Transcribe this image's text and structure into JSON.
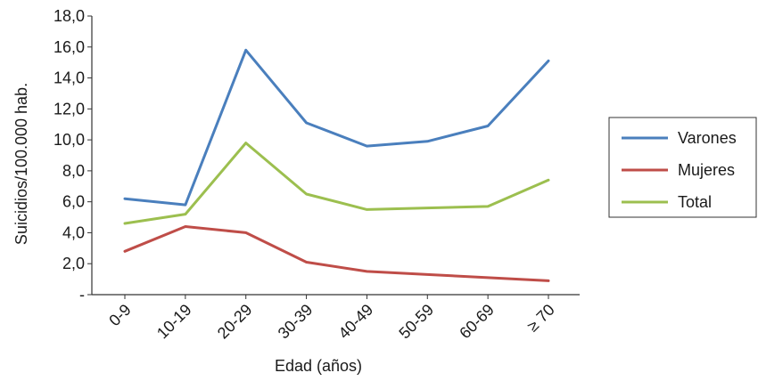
{
  "chart_data": {
    "type": "line",
    "title": "",
    "xlabel": "Edad (años)",
    "ylabel": "Suicidios/100.000 hab.",
    "categories": [
      "0-9",
      "10-19",
      "20-29",
      "30-39",
      "40-49",
      "50-59",
      "60-69",
      "≥ 70"
    ],
    "ylim": [
      0,
      18
    ],
    "yticks": [
      "-",
      "2,0",
      "4,0",
      "6,0",
      "8,0",
      "10,0",
      "12,0",
      "14,0",
      "16,0",
      "18,0"
    ],
    "ytick_values": [
      0,
      2,
      4,
      6,
      8,
      10,
      12,
      14,
      16,
      18
    ],
    "grid": false,
    "legend_position": "right",
    "series": [
      {
        "name": "Varones",
        "color": "#4a7fbd",
        "values": [
          6.2,
          5.8,
          15.8,
          11.1,
          9.6,
          9.9,
          10.9,
          15.1
        ]
      },
      {
        "name": "Mujeres",
        "color": "#bf4d48",
        "values": [
          2.8,
          4.4,
          4.0,
          2.1,
          1.5,
          1.3,
          1.1,
          0.9
        ]
      },
      {
        "name": "Total",
        "color": "#9cbf4f",
        "values": [
          4.6,
          5.2,
          9.8,
          6.5,
          5.5,
          5.6,
          5.7,
          7.4
        ]
      }
    ]
  }
}
